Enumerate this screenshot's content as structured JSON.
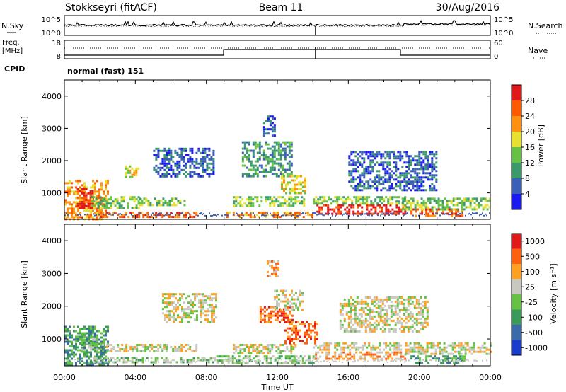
{
  "header": {
    "station": "Stokkseyri (fitACF)",
    "beam": "Beam 11",
    "date": "30/Aug/2016"
  },
  "noise_panel": {
    "left_label": "N.Sky",
    "right_label": "N.Search",
    "left_ticks": [
      "10^5",
      "10^0"
    ],
    "right_ticks": [
      "10^5",
      "10^0"
    ]
  },
  "freq_panel": {
    "left_label_top": "Freq.",
    "left_label_bottom": "[MHz]",
    "left_ticks": [
      "18",
      "8"
    ],
    "right_ticks": [
      "60",
      "0"
    ],
    "right_label": "Nave"
  },
  "cpid": {
    "label": "CPID",
    "value": "normal (fast) 151"
  },
  "chart_data": [
    {
      "type": "heatmap",
      "quantity": "Power",
      "ylabel": "Slant Range [km]",
      "ylim": [
        180,
        4500
      ],
      "yticks": [
        "1000",
        "2000",
        "3000",
        "4000"
      ],
      "colorbar_label": "Power [dB]",
      "colorbar_ticks": [
        "4",
        "8",
        "12",
        "16",
        "20",
        "24",
        "28"
      ],
      "colorbar_colors": [
        "#1a1aee",
        "#3a5fb8",
        "#3a9a6a",
        "#66c244",
        "#e8e030",
        "#ff9010",
        "#ff5a00",
        "#e01818"
      ],
      "x_hours": [
        0,
        24
      ],
      "echo_regions": [
        {
          "t0": 0.0,
          "t1": 2.4,
          "r0": 200,
          "r1": 1400,
          "level": 5
        },
        {
          "t0": 0.7,
          "t1": 1.6,
          "r0": 550,
          "r1": 1150,
          "level": 7
        },
        {
          "t0": 1.5,
          "t1": 4.3,
          "r0": 550,
          "r1": 900,
          "level": 3
        },
        {
          "t0": 2.0,
          "t1": 7.5,
          "r0": 270,
          "r1": 420,
          "level": 6
        },
        {
          "t0": 4.2,
          "t1": 6.8,
          "r0": 600,
          "r1": 850,
          "level": 3
        },
        {
          "t0": 3.4,
          "t1": 4.2,
          "r0": 1500,
          "r1": 1850,
          "level": 4
        },
        {
          "t0": 5.0,
          "t1": 8.4,
          "r0": 1500,
          "r1": 2400,
          "level": 1
        },
        {
          "t0": 9.5,
          "t1": 13.5,
          "r0": 600,
          "r1": 900,
          "level": 3
        },
        {
          "t0": 9.0,
          "t1": 14.0,
          "r0": 260,
          "r1": 420,
          "level": 5
        },
        {
          "t0": 10.0,
          "t1": 12.8,
          "r0": 1500,
          "r1": 2600,
          "level": 2
        },
        {
          "t0": 11.2,
          "t1": 11.9,
          "r0": 2800,
          "r1": 3400,
          "level": 1
        },
        {
          "t0": 12.2,
          "t1": 13.6,
          "r0": 1000,
          "r1": 1550,
          "level": 4
        },
        {
          "t0": 14.2,
          "t1": 16.8,
          "r0": 380,
          "r1": 650,
          "level": 7
        },
        {
          "t0": 17.0,
          "t1": 19.2,
          "r0": 380,
          "r1": 650,
          "level": 7
        },
        {
          "t0": 14.0,
          "t1": 19.5,
          "r0": 650,
          "r1": 900,
          "level": 3
        },
        {
          "t0": 19.5,
          "t1": 22.4,
          "r0": 280,
          "r1": 520,
          "level": 6
        },
        {
          "t0": 19.0,
          "t1": 24.0,
          "r0": 500,
          "r1": 850,
          "level": 3
        },
        {
          "t0": 16.0,
          "t1": 21.0,
          "r0": 1100,
          "r1": 2300,
          "level": 1
        }
      ]
    },
    {
      "type": "heatmap",
      "quantity": "Velocity",
      "ylabel": "Slant Range [km]",
      "xlabel": "Time UT",
      "ylim": [
        180,
        4500
      ],
      "yticks": [
        "1000",
        "2000",
        "3000",
        "4000"
      ],
      "xticks": [
        "00:00",
        "04:00",
        "08:00",
        "12:00",
        "16:00",
        "20:00",
        "00:00"
      ],
      "colorbar_label": "Velocity [m s⁻¹]",
      "colorbar_ticks": [
        "1000",
        "500",
        "100",
        "25",
        "-25",
        "-100",
        "-500",
        "-1000"
      ],
      "colorbar_colors": [
        "#1a3ccc",
        "#3a6aa8",
        "#3a9a5a",
        "#66c244",
        "#c8c8c0",
        "#ffa020",
        "#ff6010",
        "#e01818"
      ],
      "echo_regions": [
        {
          "t0": 0.0,
          "t1": 2.5,
          "r0": 200,
          "r1": 1400,
          "level": 2
        },
        {
          "t0": 0.6,
          "t1": 1.8,
          "r0": 600,
          "r1": 1100,
          "level": 3
        },
        {
          "t0": 2.0,
          "t1": 7.5,
          "r0": 600,
          "r1": 850,
          "level": 4
        },
        {
          "t0": 1.5,
          "t1": 8.5,
          "r0": 280,
          "r1": 450,
          "level": 3
        },
        {
          "t0": 5.5,
          "t1": 8.6,
          "r0": 1500,
          "r1": 2400,
          "level": 4
        },
        {
          "t0": 8.6,
          "t1": 14.0,
          "r0": 300,
          "r1": 500,
          "level": 3
        },
        {
          "t0": 9.5,
          "t1": 13.0,
          "r0": 550,
          "r1": 850,
          "level": 4
        },
        {
          "t0": 11.0,
          "t1": 12.8,
          "r0": 1500,
          "r1": 2000,
          "level": 6
        },
        {
          "t0": 11.8,
          "t1": 13.4,
          "r0": 1900,
          "r1": 2500,
          "level": 4
        },
        {
          "t0": 11.4,
          "t1": 12.0,
          "r0": 2900,
          "r1": 3400,
          "level": 5
        },
        {
          "t0": 12.4,
          "t1": 14.2,
          "r0": 900,
          "r1": 1550,
          "level": 6
        },
        {
          "t0": 14.0,
          "t1": 19.2,
          "r0": 380,
          "r1": 620,
          "level": 5
        },
        {
          "t0": 14.0,
          "t1": 19.0,
          "r0": 650,
          "r1": 900,
          "level": 4
        },
        {
          "t0": 19.2,
          "t1": 24.0,
          "r0": 520,
          "r1": 900,
          "level": 4
        },
        {
          "t0": 19.5,
          "t1": 22.5,
          "r0": 250,
          "r1": 500,
          "level": 2
        },
        {
          "t0": 15.5,
          "t1": 20.5,
          "r0": 1200,
          "r1": 2300,
          "level": 4
        }
      ]
    }
  ]
}
